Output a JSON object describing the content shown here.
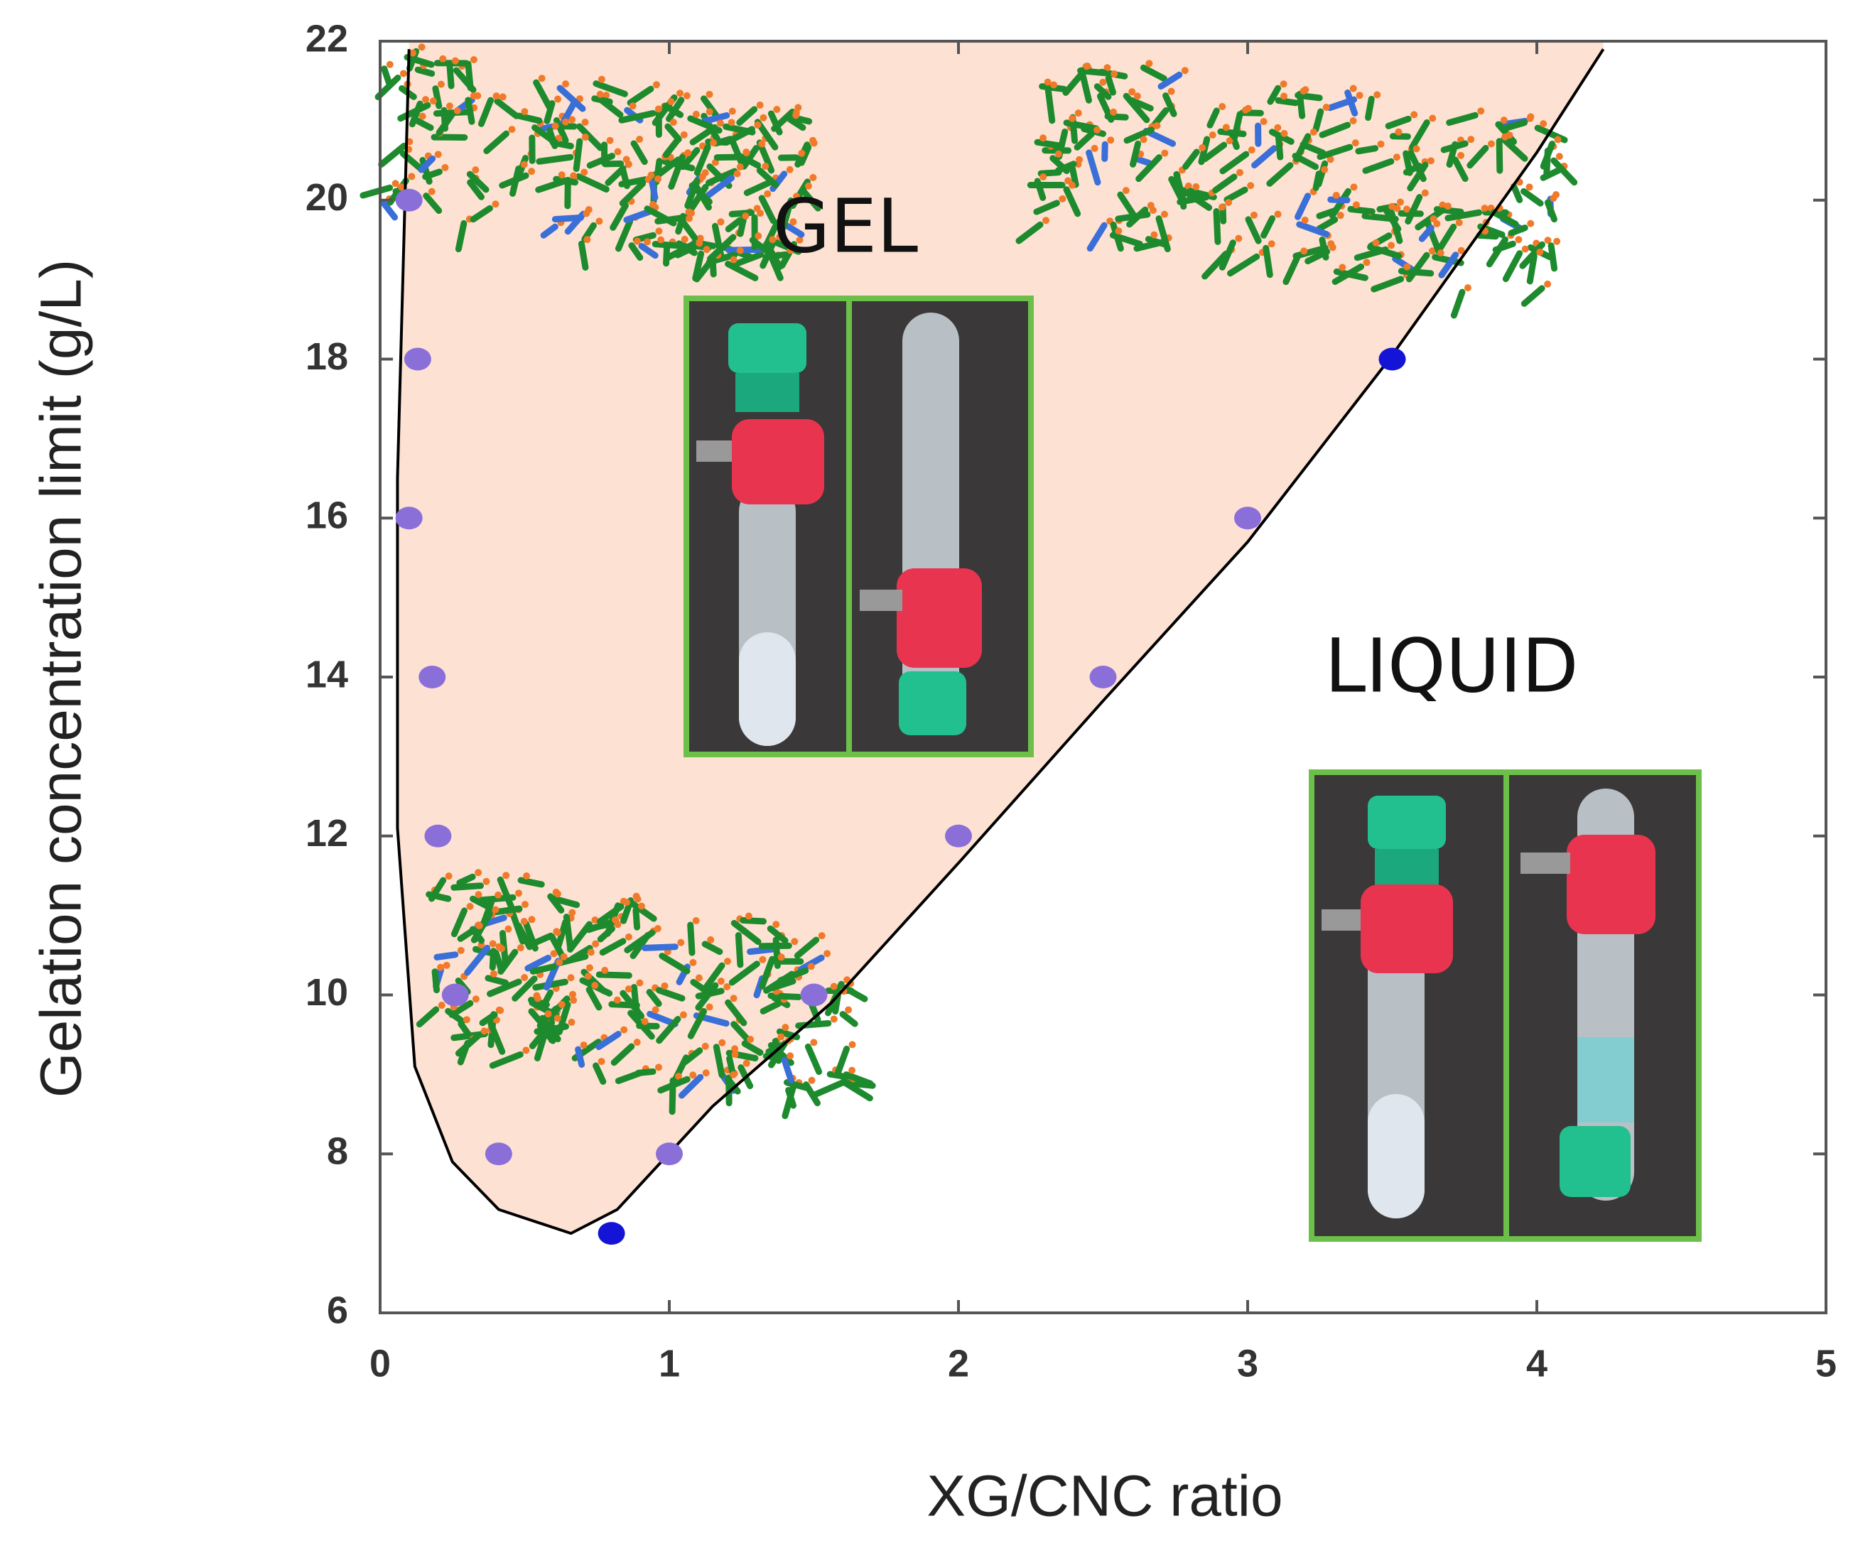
{
  "chart_data": {
    "type": "scatter",
    "xlabel": "XG/CNC ratio",
    "ylabel": "Gelation concentration limit (g/L)",
    "xlim": [
      0,
      5
    ],
    "ylim": [
      6,
      22
    ],
    "xticks": [
      0,
      1,
      2,
      3,
      4,
      5
    ],
    "yticks": [
      6,
      8,
      10,
      12,
      14,
      16,
      18,
      20,
      22
    ],
    "series": [
      {
        "color": "#8b6fd8",
        "x": [
          0.1,
          0.13,
          0.1,
          0.18,
          0.2,
          0.26,
          0.41,
          1,
          1.5,
          2,
          2.5,
          3
        ],
        "values": [
          20,
          18,
          16,
          14,
          12,
          10,
          8,
          8,
          10,
          12,
          14,
          16
        ]
      },
      {
        "color": "#1414d6",
        "x": [
          0.8,
          3.5
        ],
        "values": [
          7,
          18
        ]
      }
    ],
    "boundary": {
      "color": "#000000",
      "fill": "#fde2d3",
      "x": [
        0.1,
        0.06,
        0.06,
        0.12,
        0.25,
        0.41,
        0.66,
        0.82,
        1.15,
        1.56,
        2.01,
        2.5,
        3,
        3.49,
        4,
        4.23
      ],
      "values": [
        21.9,
        16.5,
        12.1,
        9.1,
        7.9,
        7.3,
        7,
        7.3,
        8.6,
        9.9,
        11.7,
        13.7,
        15.7,
        18,
        20.6,
        21.9
      ]
    },
    "annotations": [
      "GEL",
      "LIQUID"
    ]
  }
}
